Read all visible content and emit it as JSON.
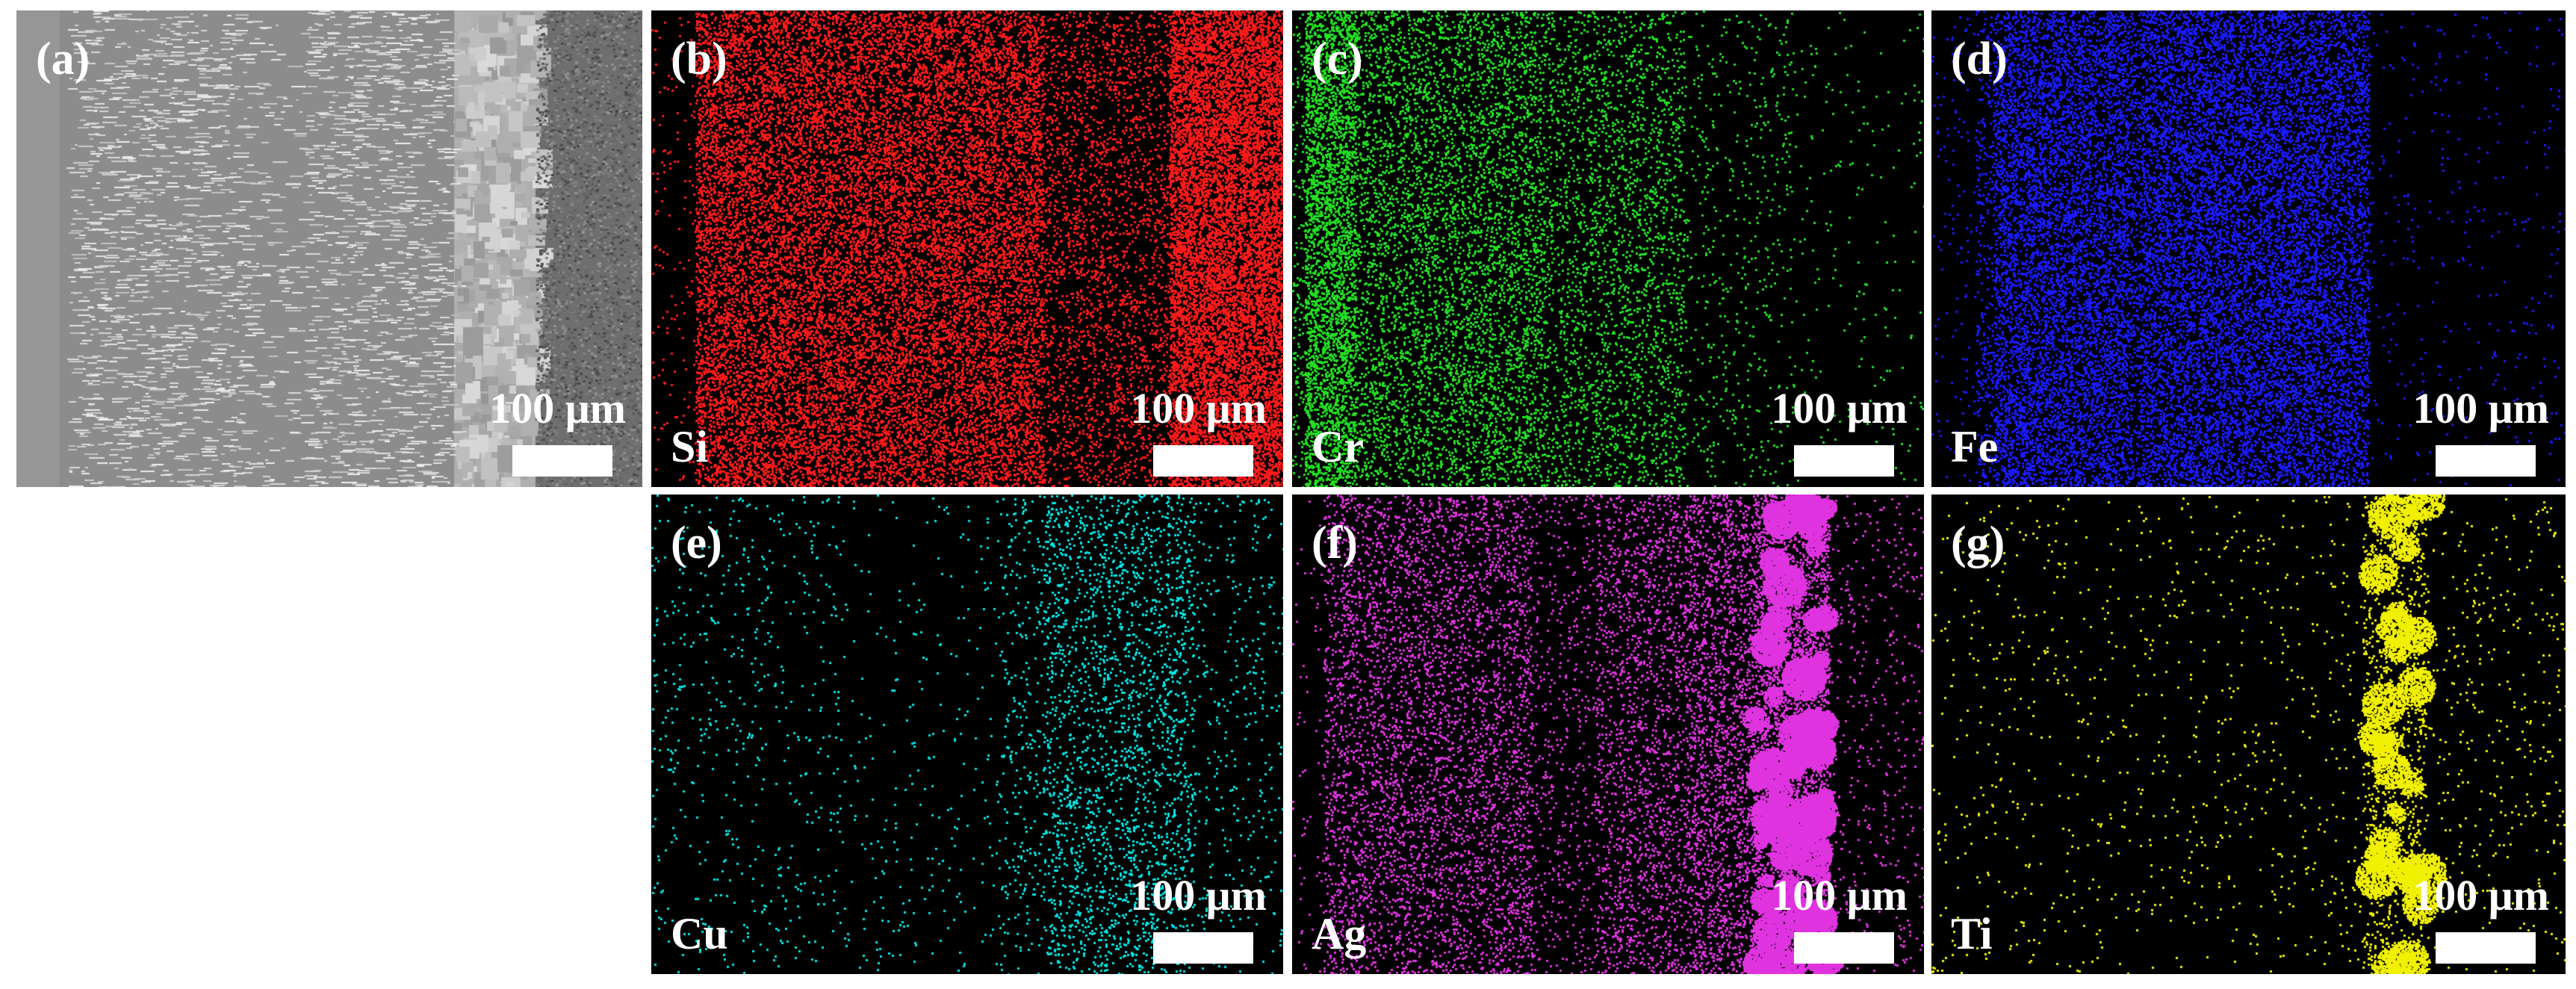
{
  "scale_label": "100 μm",
  "panels": [
    {
      "id": "a",
      "label": "(a)",
      "element": "",
      "color": "#b4b4b4"
    },
    {
      "id": "b",
      "label": "(b)",
      "element": "Si",
      "color": "#ff1a1a"
    },
    {
      "id": "c",
      "label": "(c)",
      "element": "Cr",
      "color": "#22e022"
    },
    {
      "id": "d",
      "label": "(d)",
      "element": "Fe",
      "color": "#1a1aff"
    },
    {
      "id": "e",
      "label": "(e)",
      "element": "Cu",
      "color": "#00e5e5"
    },
    {
      "id": "f",
      "label": "(f)",
      "element": "Ag",
      "color": "#e033e0"
    },
    {
      "id": "g",
      "label": "(g)",
      "element": "Ti",
      "color": "#f0f000"
    }
  ]
}
